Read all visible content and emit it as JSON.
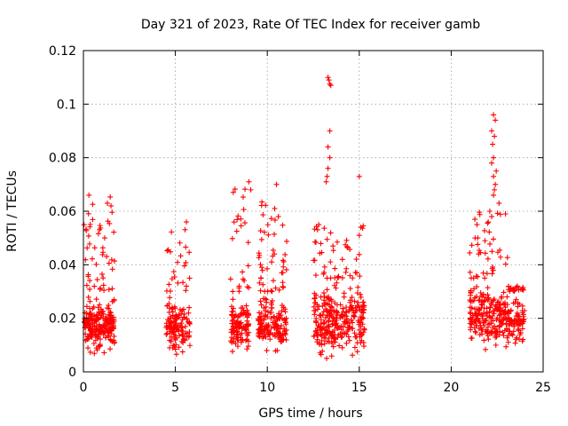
{
  "chart_data": {
    "type": "scatter",
    "title": "Day 321 of 2023, Rate Of TEC Index for receiver gamb",
    "xlabel": "GPS time / hours",
    "ylabel": "ROTI / TECUs",
    "xlim": [
      0,
      25
    ],
    "ylim": [
      0,
      0.12
    ],
    "xticks": [
      0,
      5,
      10,
      15,
      20,
      25
    ],
    "yticks": [
      0,
      0.02,
      0.04,
      0.06,
      0.08,
      0.1,
      0.12
    ],
    "xtick_labels": [
      "0",
      "5",
      "10",
      "15",
      "20",
      "25"
    ],
    "ytick_labels": [
      "0",
      "0.02",
      "0.04",
      "0.06",
      "0.08",
      "0.1",
      "0.12"
    ],
    "grid": true,
    "marker": "+",
    "color": "#ff0000",
    "clusters": [
      {
        "x": [
          0.0,
          1.7
        ],
        "base": [
          0.005,
          0.03
        ],
        "high": [
          0.03,
          0.066
        ],
        "n": 260
      },
      {
        "x": [
          4.5,
          5.8
        ],
        "base": [
          0.004,
          0.03
        ],
        "high": [
          0.03,
          0.057
        ],
        "n": 140
      },
      {
        "x": [
          8.0,
          9.0
        ],
        "base": [
          0.004,
          0.03
        ],
        "high": [
          0.03,
          0.071
        ],
        "n": 130
      },
      {
        "x": [
          9.5,
          11.1
        ],
        "base": [
          0.005,
          0.03
        ],
        "high": [
          0.03,
          0.07
        ],
        "n": 200
      },
      {
        "x": [
          12.5,
          15.3
        ],
        "base": [
          0.003,
          0.035
        ],
        "high": [
          0.035,
          0.055
        ],
        "n": 330
      },
      {
        "x": [
          21.0,
          23.1
        ],
        "base": [
          0.007,
          0.035
        ],
        "high": [
          0.035,
          0.06
        ],
        "n": 260
      },
      {
        "x": [
          23.1,
          24.0
        ],
        "base": [
          0.007,
          0.03
        ],
        "high": [
          0.03,
          0.032
        ],
        "n": 100
      }
    ],
    "notable_points": [
      {
        "x": 0.3,
        "y": 0.066
      },
      {
        "x": 1.3,
        "y": 0.063
      },
      {
        "x": 1.5,
        "y": 0.062
      },
      {
        "x": 5.6,
        "y": 0.056
      },
      {
        "x": 5.6,
        "y": 0.032
      },
      {
        "x": 9.0,
        "y": 0.071
      },
      {
        "x": 9.1,
        "y": 0.068
      },
      {
        "x": 10.5,
        "y": 0.07
      },
      {
        "x": 10.4,
        "y": 0.061
      },
      {
        "x": 10.6,
        "y": 0.058
      },
      {
        "x": 12.8,
        "y": 0.055
      },
      {
        "x": 13.3,
        "y": 0.11
      },
      {
        "x": 13.35,
        "y": 0.109
      },
      {
        "x": 13.4,
        "y": 0.1075
      },
      {
        "x": 13.45,
        "y": 0.107
      },
      {
        "x": 13.4,
        "y": 0.09
      },
      {
        "x": 13.3,
        "y": 0.084
      },
      {
        "x": 13.4,
        "y": 0.08
      },
      {
        "x": 13.3,
        "y": 0.076
      },
      {
        "x": 13.25,
        "y": 0.073
      },
      {
        "x": 13.2,
        "y": 0.071
      },
      {
        "x": 15.0,
        "y": 0.073
      },
      {
        "x": 15.0,
        "y": 0.051
      },
      {
        "x": 22.3,
        "y": 0.096
      },
      {
        "x": 22.4,
        "y": 0.094
      },
      {
        "x": 22.2,
        "y": 0.09
      },
      {
        "x": 22.35,
        "y": 0.088
      },
      {
        "x": 22.25,
        "y": 0.085
      },
      {
        "x": 22.3,
        "y": 0.08
      },
      {
        "x": 22.2,
        "y": 0.078
      },
      {
        "x": 22.45,
        "y": 0.075
      },
      {
        "x": 22.3,
        "y": 0.073
      },
      {
        "x": 22.4,
        "y": 0.07
      },
      {
        "x": 22.35,
        "y": 0.068
      },
      {
        "x": 22.3,
        "y": 0.066
      },
      {
        "x": 22.1,
        "y": 0.06
      },
      {
        "x": 22.2,
        "y": 0.058
      },
      {
        "x": 21.4,
        "y": 0.055
      },
      {
        "x": 21.3,
        "y": 0.05
      },
      {
        "x": 22.6,
        "y": 0.063
      },
      {
        "x": 23.6,
        "y": 0.032
      }
    ]
  }
}
